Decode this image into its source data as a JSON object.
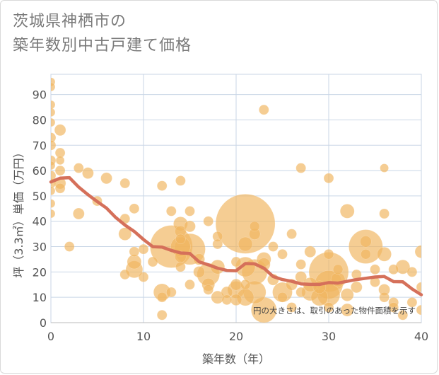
{
  "title_line1": "茨城県神栖市の",
  "title_line2": "築年数別中古戸建て価格",
  "note": "円の大きさは、取引のあった物件面積を示す",
  "colors": {
    "bubble": "#f0b560",
    "line": "#d5705a",
    "grid": "#c9d6e6",
    "axis": "#bbbbbb"
  },
  "chart_data": {
    "type": "scatter",
    "xlabel": "築年数（年）",
    "ylabel": "坪（3.3㎡）単価（万円）",
    "xlim": [
      0,
      40
    ],
    "ylim": [
      0,
      98
    ],
    "xticks": [
      0,
      10,
      20,
      30,
      40
    ],
    "yticks": [
      0,
      10,
      20,
      30,
      40,
      50,
      60,
      70,
      80,
      90
    ],
    "grid": true,
    "points": [
      {
        "x": 0,
        "y": 95,
        "s": 6
      },
      {
        "x": 0,
        "y": 93,
        "s": 6
      },
      {
        "x": 0,
        "y": 86,
        "s": 6
      },
      {
        "x": 0,
        "y": 83,
        "s": 6
      },
      {
        "x": 0,
        "y": 79,
        "s": 6
      },
      {
        "x": 0,
        "y": 73,
        "s": 7
      },
      {
        "x": 0,
        "y": 70,
        "s": 7
      },
      {
        "x": 0,
        "y": 64,
        "s": 7
      },
      {
        "x": 0,
        "y": 62,
        "s": 6
      },
      {
        "x": 0,
        "y": 58,
        "s": 7
      },
      {
        "x": 0,
        "y": 55,
        "s": 7
      },
      {
        "x": 0,
        "y": 52,
        "s": 6
      },
      {
        "x": 0,
        "y": 47,
        "s": 6
      },
      {
        "x": 0,
        "y": 43,
        "s": 6
      },
      {
        "x": 1,
        "y": 76,
        "s": 8
      },
      {
        "x": 1,
        "y": 67,
        "s": 7
      },
      {
        "x": 1,
        "y": 64,
        "s": 6
      },
      {
        "x": 1,
        "y": 60,
        "s": 7
      },
      {
        "x": 1,
        "y": 55,
        "s": 8
      },
      {
        "x": 1,
        "y": 53,
        "s": 7
      },
      {
        "x": 2,
        "y": 30,
        "s": 7
      },
      {
        "x": 3,
        "y": 61,
        "s": 7
      },
      {
        "x": 3,
        "y": 43,
        "s": 8
      },
      {
        "x": 4,
        "y": 59,
        "s": 8
      },
      {
        "x": 5,
        "y": 48,
        "s": 7
      },
      {
        "x": 6,
        "y": 57,
        "s": 8
      },
      {
        "x": 8,
        "y": 55,
        "s": 7
      },
      {
        "x": 8,
        "y": 41,
        "s": 7
      },
      {
        "x": 8,
        "y": 35,
        "s": 9
      },
      {
        "x": 8,
        "y": 19,
        "s": 7
      },
      {
        "x": 9,
        "y": 45,
        "s": 7
      },
      {
        "x": 9,
        "y": 28,
        "s": 7
      },
      {
        "x": 9,
        "y": 24,
        "s": 10
      },
      {
        "x": 9,
        "y": 21,
        "s": 12
      },
      {
        "x": 10,
        "y": 29,
        "s": 7
      },
      {
        "x": 10,
        "y": 18,
        "s": 7
      },
      {
        "x": 11,
        "y": 24,
        "s": 7
      },
      {
        "x": 12,
        "y": 54,
        "s": 7
      },
      {
        "x": 12,
        "y": 12,
        "s": 12
      },
      {
        "x": 12,
        "y": 10,
        "s": 7
      },
      {
        "x": 12,
        "y": 3,
        "s": 7
      },
      {
        "x": 13,
        "y": 44,
        "s": 7
      },
      {
        "x": 13,
        "y": 30,
        "s": 30
      },
      {
        "x": 13,
        "y": 12,
        "s": 7
      },
      {
        "x": 14,
        "y": 56,
        "s": 7
      },
      {
        "x": 14,
        "y": 39,
        "s": 10
      },
      {
        "x": 14,
        "y": 36,
        "s": 8
      },
      {
        "x": 14,
        "y": 33,
        "s": 7
      },
      {
        "x": 14,
        "y": 30,
        "s": 14
      },
      {
        "x": 14,
        "y": 26,
        "s": 8
      },
      {
        "x": 14,
        "y": 22,
        "s": 7
      },
      {
        "x": 15,
        "y": 44,
        "s": 7
      },
      {
        "x": 15,
        "y": 38,
        "s": 8
      },
      {
        "x": 15,
        "y": 29,
        "s": 22
      },
      {
        "x": 15,
        "y": 15,
        "s": 7
      },
      {
        "x": 16,
        "y": 25,
        "s": 8
      },
      {
        "x": 16,
        "y": 20,
        "s": 8
      },
      {
        "x": 17,
        "y": 40,
        "s": 7
      },
      {
        "x": 17,
        "y": 19,
        "s": 16
      },
      {
        "x": 17,
        "y": 15,
        "s": 9
      },
      {
        "x": 17,
        "y": 13,
        "s": 7
      },
      {
        "x": 18,
        "y": 34,
        "s": 7
      },
      {
        "x": 18,
        "y": 31,
        "s": 7
      },
      {
        "x": 18,
        "y": 22,
        "s": 10
      },
      {
        "x": 18,
        "y": 10,
        "s": 9
      },
      {
        "x": 19,
        "y": 12,
        "s": 8
      },
      {
        "x": 19,
        "y": 9,
        "s": 7
      },
      {
        "x": 20,
        "y": 24,
        "s": 7
      },
      {
        "x": 20,
        "y": 15,
        "s": 8
      },
      {
        "x": 20,
        "y": 13,
        "s": 12
      },
      {
        "x": 20,
        "y": 9,
        "s": 8
      },
      {
        "x": 21,
        "y": 39,
        "s": 42
      },
      {
        "x": 21,
        "y": 31,
        "s": 10
      },
      {
        "x": 21,
        "y": 22,
        "s": 14
      },
      {
        "x": 21,
        "y": 15,
        "s": 7
      },
      {
        "x": 21,
        "y": 10,
        "s": 12
      },
      {
        "x": 22,
        "y": 38,
        "s": 7
      },
      {
        "x": 22,
        "y": 35,
        "s": 8
      },
      {
        "x": 22,
        "y": 20,
        "s": 18
      },
      {
        "x": 22,
        "y": 12,
        "s": 16
      },
      {
        "x": 23,
        "y": 84,
        "s": 7
      },
      {
        "x": 23,
        "y": 25,
        "s": 10
      },
      {
        "x": 23,
        "y": 23,
        "s": 9
      },
      {
        "x": 23,
        "y": 5,
        "s": 18
      },
      {
        "x": 24,
        "y": 30,
        "s": 7
      },
      {
        "x": 24,
        "y": 17,
        "s": 8
      },
      {
        "x": 25,
        "y": 27,
        "s": 7
      },
      {
        "x": 25,
        "y": 12,
        "s": 14
      },
      {
        "x": 25,
        "y": 10,
        "s": 7
      },
      {
        "x": 26,
        "y": 35,
        "s": 7
      },
      {
        "x": 26,
        "y": 15,
        "s": 8
      },
      {
        "x": 26,
        "y": 6,
        "s": 7
      },
      {
        "x": 27,
        "y": 61,
        "s": 7
      },
      {
        "x": 27,
        "y": 23,
        "s": 7
      },
      {
        "x": 27,
        "y": 18,
        "s": 8
      },
      {
        "x": 27,
        "y": 12,
        "s": 7
      },
      {
        "x": 28,
        "y": 28,
        "s": 8
      },
      {
        "x": 28,
        "y": 15,
        "s": 10
      },
      {
        "x": 28,
        "y": 12,
        "s": 12
      },
      {
        "x": 29,
        "y": 14,
        "s": 9
      },
      {
        "x": 29,
        "y": 10,
        "s": 12
      },
      {
        "x": 30,
        "y": 57,
        "s": 7
      },
      {
        "x": 30,
        "y": 27,
        "s": 7
      },
      {
        "x": 30,
        "y": 20,
        "s": 28
      },
      {
        "x": 30,
        "y": 15,
        "s": 20
      },
      {
        "x": 30,
        "y": 11,
        "s": 16
      },
      {
        "x": 30,
        "y": 6,
        "s": 7
      },
      {
        "x": 31,
        "y": 21,
        "s": 7
      },
      {
        "x": 31,
        "y": 17,
        "s": 10
      },
      {
        "x": 32,
        "y": 44,
        "s": 10
      },
      {
        "x": 32,
        "y": 11,
        "s": 9
      },
      {
        "x": 32,
        "y": 5,
        "s": 9
      },
      {
        "x": 33,
        "y": 19,
        "s": 7
      },
      {
        "x": 33,
        "y": 14,
        "s": 8
      },
      {
        "x": 34,
        "y": 32,
        "s": 8
      },
      {
        "x": 34,
        "y": 30,
        "s": 24
      },
      {
        "x": 34,
        "y": 27,
        "s": 7
      },
      {
        "x": 35,
        "y": 21,
        "s": 7
      },
      {
        "x": 35,
        "y": 16,
        "s": 7
      },
      {
        "x": 36,
        "y": 61,
        "s": 6
      },
      {
        "x": 36,
        "y": 43,
        "s": 7
      },
      {
        "x": 36,
        "y": 27,
        "s": 10
      },
      {
        "x": 36,
        "y": 13,
        "s": 8
      },
      {
        "x": 36,
        "y": 10,
        "s": 7
      },
      {
        "x": 37,
        "y": 21,
        "s": 7
      },
      {
        "x": 37,
        "y": 8,
        "s": 7
      },
      {
        "x": 37,
        "y": 6,
        "s": 7
      },
      {
        "x": 38,
        "y": 22,
        "s": 10
      },
      {
        "x": 38,
        "y": 3,
        "s": 7
      },
      {
        "x": 39,
        "y": 20,
        "s": 7
      },
      {
        "x": 39,
        "y": 8,
        "s": 7
      },
      {
        "x": 40,
        "y": 28,
        "s": 9
      },
      {
        "x": 40,
        "y": 14,
        "s": 7
      },
      {
        "x": 40,
        "y": 5,
        "s": 7
      }
    ],
    "trend": {
      "x": [
        0,
        1,
        2,
        3,
        4,
        5,
        6,
        7,
        8,
        9,
        10,
        11,
        12,
        13,
        14,
        15,
        16,
        17,
        18,
        19,
        20,
        21,
        22,
        23,
        24,
        25,
        26,
        27,
        28,
        29,
        30,
        31,
        32,
        33,
        34,
        35,
        36,
        37,
        38,
        39,
        40
      ],
      "y": [
        55.5,
        57.0,
        57.2,
        53.5,
        50.5,
        47.8,
        45.2,
        41.5,
        38.5,
        36.0,
        32.8,
        30.0,
        29.8,
        28.5,
        27.5,
        27.3,
        24.0,
        22.8,
        21.5,
        20.6,
        20.5,
        23.3,
        23.2,
        21.5,
        18.2,
        17.0,
        16.3,
        15.3,
        15.1,
        15.1,
        15.8,
        15.6,
        16.3,
        17.0,
        17.5,
        18.0,
        18.2,
        16.2,
        16.1,
        13.3,
        11.0
      ]
    }
  }
}
